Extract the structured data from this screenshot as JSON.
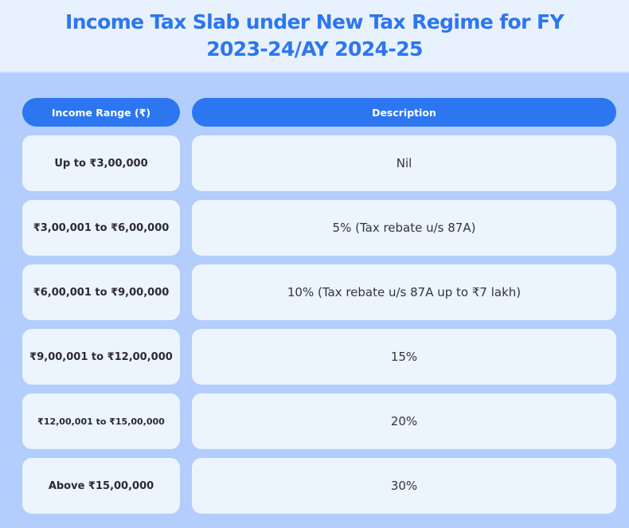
{
  "title": "Income Tax Slab under New Tax Regime for FY 2023-24/AY 2024-25",
  "table": {
    "headers": [
      "Income Range (₹)",
      "Description"
    ],
    "rows": [
      {
        "range": "Up to ₹3,00,000",
        "description": "Nil"
      },
      {
        "range": "₹3,00,001 to ₹6,00,000",
        "description": "5% (Tax rebate u/s 87A)"
      },
      {
        "range": "₹6,00,001 to ₹9,00,000",
        "description": "10% (Tax rebate u/s 87A up to ₹7 lakh)"
      },
      {
        "range": "₹9,00,001 to ₹12,00,000",
        "description": "15%"
      },
      {
        "range": "₹12,00,001 to ₹15,00,000",
        "description": "20%"
      },
      {
        "range": "Above ₹15,00,000",
        "description": "30%"
      }
    ]
  },
  "colors": {
    "accent": "#2c76f0",
    "background": "#b3cdfd",
    "cell": "#ecf4fe",
    "title_band": "#e8f1fe"
  }
}
